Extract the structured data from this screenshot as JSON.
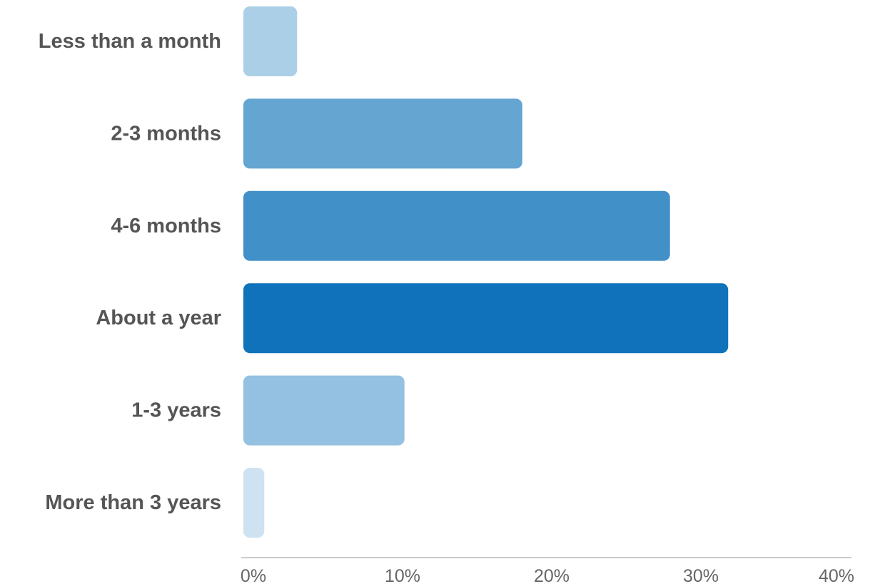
{
  "chart_data": {
    "type": "bar",
    "orientation": "horizontal",
    "categories": [
      "Less than a month",
      "2-3 months",
      "4-6 months",
      "About a year",
      "1-3 years",
      "More than 3 years"
    ],
    "values": [
      3.6,
      18.7,
      28.6,
      32.5,
      10.8,
      1.4
    ],
    "unit": "%",
    "xlim": [
      0,
      40
    ],
    "xticks": [
      "0%",
      "10%",
      "20%",
      "30%",
      "40%"
    ],
    "xtick_values": [
      0,
      10,
      20,
      30,
      40
    ],
    "bar_colors": [
      "#abcfe7",
      "#64a5d2",
      "#4290c8",
      "#0f72ba",
      "#94c0e1",
      "#cee2f1"
    ],
    "label_color": "#555555",
    "tick_color": "#666666",
    "axis_color": "#bbbbbb",
    "grid": false,
    "legend": "none"
  }
}
